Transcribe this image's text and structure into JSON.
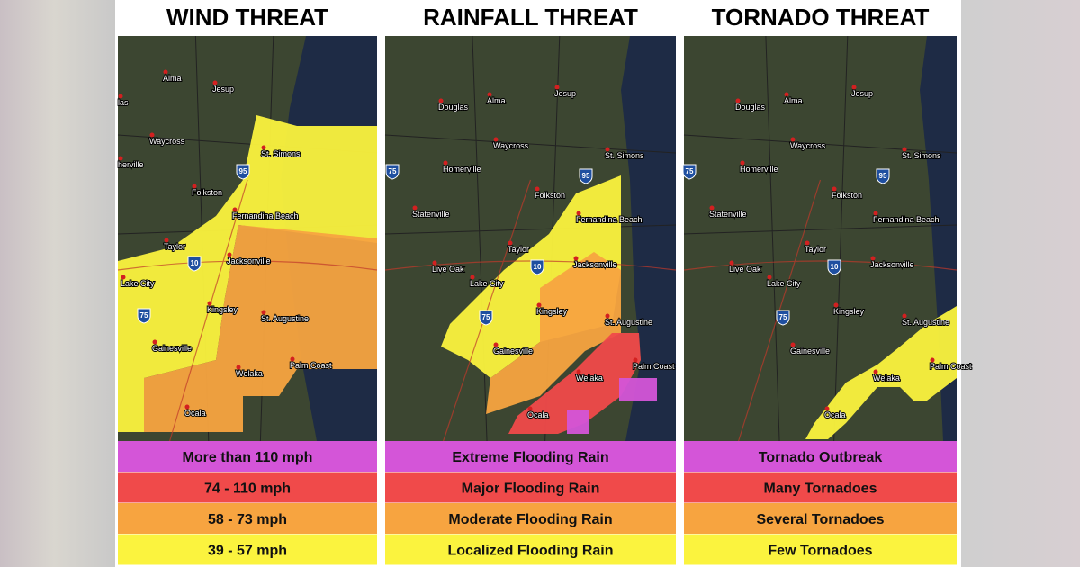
{
  "panels": [
    {
      "title": "WIND THREAT",
      "labels": [
        "las",
        "Alma",
        "Jesup",
        "Waycross",
        "St. Simons",
        "herville",
        "Folkston",
        "Fernandina Beach",
        "Taylor",
        "Jacksonville",
        "Lake City",
        "Kingsley",
        "St. Augustine",
        "Gainesville",
        "Welaka",
        "Palm Coast",
        "Ocala"
      ],
      "highways": [
        "95",
        "10",
        "75"
      ],
      "legend": [
        "More than 110 mph",
        "74 - 110 mph",
        "58 - 73 mph",
        "39 - 57 mph"
      ]
    },
    {
      "title": "RAINFALL THREAT",
      "labels": [
        "Douglas",
        "Alma",
        "Jesup",
        "Waycross",
        "St. Simons",
        "Homerville",
        "Folkston",
        "Statenville",
        "Fernandina Beach",
        "Taylor",
        "Live Oak",
        "Lake City",
        "Jacksonville",
        "Kingsley",
        "St. Augustine",
        "Gainesville",
        "Welaka",
        "Palm Coast",
        "Ocala"
      ],
      "highways": [
        "75",
        "95",
        "10",
        "75"
      ],
      "legend": [
        "Extreme Flooding Rain",
        "Major Flooding Rain",
        "Moderate Flooding Rain",
        "Localized Flooding Rain"
      ]
    },
    {
      "title": "TORNADO THREAT",
      "labels": [
        "Douglas",
        "Alma",
        "Jesup",
        "Waycross",
        "St. Simons",
        "Homerville",
        "Folkston",
        "Statenville",
        "Fernandina Beach",
        "Taylor",
        "Live Oak",
        "Lake City",
        "Jacksonville",
        "Kingsley",
        "St. Augustine",
        "Gainesville",
        "Welaka",
        "Palm Coast",
        "Ocala"
      ],
      "highways": [
        "75",
        "95",
        "10",
        "75"
      ],
      "legend": [
        "Tornado Outbreak",
        "Many Tornadoes",
        "Several Tornadoes",
        "Few Tornadoes"
      ]
    }
  ]
}
